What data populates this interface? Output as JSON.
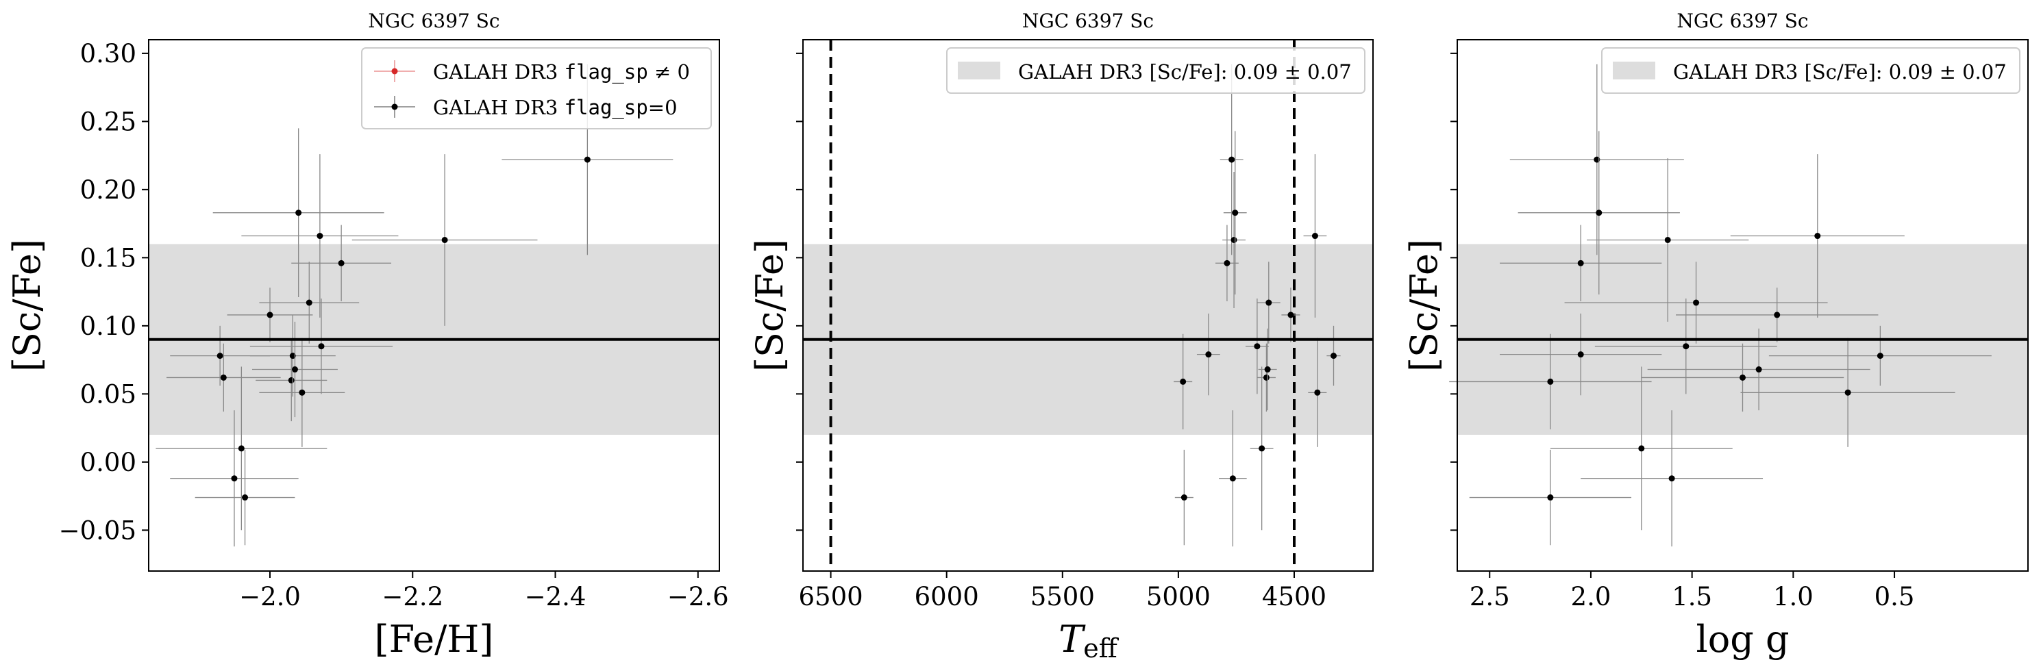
{
  "chart_data": [
    {
      "type": "scatter",
      "title": "NGC 6397 Sc",
      "xlabel": "[Fe/H]",
      "ylabel": "[Sc/Fe]",
      "xlim": [
        -1.83,
        -2.63
      ],
      "ylim": [
        -0.08,
        0.31
      ],
      "xticks": [
        -2.0,
        -2.2,
        -2.4,
        -2.6
      ],
      "xtick_labels": [
        "−2.0",
        "−2.2",
        "−2.4",
        "−2.6"
      ],
      "yticks": [
        -0.05,
        0.0,
        0.05,
        0.1,
        0.15,
        0.2,
        0.25,
        0.3
      ],
      "ytick_labels": [
        "−0.05",
        "0.00",
        "0.05",
        "0.10",
        "0.15",
        "0.20",
        "0.25",
        "0.30"
      ],
      "show_ytick_labels": true,
      "legend": {
        "placement": "top-right",
        "entries": [
          {
            "label_prefix": "GALAH DR3 ",
            "label_code": "flag_sp",
            "label_suffix": " ≠ 0",
            "color": "#d62728"
          },
          {
            "label_prefix": "GALAH DR3 ",
            "label_code": "flag_sp",
            "label_suffix": "=0",
            "color": "#000000"
          }
        ]
      },
      "band": {
        "center": 0.09,
        "half_width": 0.07
      },
      "series": [
        {
          "name": "GALAH DR3 flag_sp=0",
          "points": [
            {
              "x": -1.93,
              "y": 0.078,
              "xerr": 0.07,
              "yerr": 0.022
            },
            {
              "x": -1.935,
              "y": 0.062,
              "xerr": 0.08,
              "yerr": 0.025
            },
            {
              "x": -1.95,
              "y": -0.012,
              "xerr": 0.09,
              "yerr": 0.05
            },
            {
              "x": -1.96,
              "y": 0.01,
              "xerr": 0.12,
              "yerr": 0.06
            },
            {
              "x": -1.965,
              "y": -0.026,
              "xerr": 0.07,
              "yerr": 0.035
            },
            {
              "x": -2.0,
              "y": 0.108,
              "xerr": 0.06,
              "yerr": 0.02
            },
            {
              "x": -2.03,
              "y": 0.06,
              "xerr": 0.05,
              "yerr": 0.03
            },
            {
              "x": -2.032,
              "y": 0.078,
              "xerr": 0.06,
              "yerr": 0.03
            },
            {
              "x": -2.035,
              "y": 0.068,
              "xerr": 0.06,
              "yerr": 0.035
            },
            {
              "x": -2.04,
              "y": 0.183,
              "xerr": 0.12,
              "yerr": 0.062
            },
            {
              "x": -2.045,
              "y": 0.051,
              "xerr": 0.06,
              "yerr": 0.04
            },
            {
              "x": -2.055,
              "y": 0.117,
              "xerr": 0.07,
              "yerr": 0.03
            },
            {
              "x": -2.07,
              "y": 0.166,
              "xerr": 0.11,
              "yerr": 0.06
            },
            {
              "x": -2.072,
              "y": 0.085,
              "xerr": 0.1,
              "yerr": 0.035
            },
            {
              "x": -2.1,
              "y": 0.146,
              "xerr": 0.07,
              "yerr": 0.028
            },
            {
              "x": -2.245,
              "y": 0.163,
              "xerr": 0.13,
              "yerr": 0.063
            },
            {
              "x": -2.445,
              "y": 0.222,
              "xerr": 0.12,
              "yerr": 0.07
            }
          ]
        }
      ]
    },
    {
      "type": "scatter",
      "title": "NGC 6397 Sc",
      "xlabel": "T",
      "xlabel_sub": "eff",
      "ylabel": "[Sc/Fe]",
      "xlim": [
        6620,
        4160
      ],
      "ylim": [
        -0.08,
        0.31
      ],
      "xticks": [
        6500,
        6000,
        5500,
        5000,
        4500
      ],
      "xtick_labels": [
        "6500",
        "6000",
        "5500",
        "5000",
        "4500"
      ],
      "yticks": [
        -0.05,
        0.0,
        0.05,
        0.1,
        0.15,
        0.2,
        0.25,
        0.3
      ],
      "show_ytick_labels": false,
      "vlines": [
        6500,
        4500
      ],
      "legend": {
        "placement": "top-right",
        "entries": [
          {
            "label_prefix": "GALAH DR3 [Sc/Fe]: ",
            "label_code": "",
            "label_suffix": "0.09 ± 0.07",
            "color": "#dddddd",
            "kind": "patch"
          }
        ]
      },
      "band": {
        "center": 0.09,
        "half_width": 0.07
      },
      "series": [
        {
          "name": "GALAH DR3 flag_sp=0",
          "points": [
            {
              "x": 4980,
              "y": 0.059,
              "xerr": 40,
              "yerr": 0.035
            },
            {
              "x": 4975,
              "y": -0.026,
              "xerr": 40,
              "yerr": 0.035
            },
            {
              "x": 4870,
              "y": 0.079,
              "xerr": 50,
              "yerr": 0.03
            },
            {
              "x": 4790,
              "y": 0.146,
              "xerr": 50,
              "yerr": 0.028
            },
            {
              "x": 4770,
              "y": 0.222,
              "xerr": 50,
              "yerr": 0.07
            },
            {
              "x": 4760,
              "y": 0.163,
              "xerr": 50,
              "yerr": 0.05
            },
            {
              "x": 4755,
              "y": 0.183,
              "xerr": 50,
              "yerr": 0.06
            },
            {
              "x": 4765,
              "y": -0.012,
              "xerr": 60,
              "yerr": 0.05
            },
            {
              "x": 4660,
              "y": 0.085,
              "xerr": 50,
              "yerr": 0.035
            },
            {
              "x": 4640,
              "y": 0.01,
              "xerr": 50,
              "yerr": 0.06
            },
            {
              "x": 4620,
              "y": 0.062,
              "xerr": 40,
              "yerr": 0.025
            },
            {
              "x": 4615,
              "y": 0.068,
              "xerr": 40,
              "yerr": 0.03
            },
            {
              "x": 4610,
              "y": 0.117,
              "xerr": 50,
              "yerr": 0.03
            },
            {
              "x": 4515,
              "y": 0.108,
              "xerr": 40,
              "yerr": 0.02
            },
            {
              "x": 4410,
              "y": 0.166,
              "xerr": 50,
              "yerr": 0.06
            },
            {
              "x": 4400,
              "y": 0.051,
              "xerr": 40,
              "yerr": 0.04
            },
            {
              "x": 4330,
              "y": 0.078,
              "xerr": 30,
              "yerr": 0.022
            }
          ]
        }
      ]
    },
    {
      "type": "scatter",
      "title": "NGC 6397 Sc",
      "xlabel": "log g",
      "ylabel": "[Sc/Fe]",
      "xlim": [
        2.66,
        -0.16
      ],
      "ylim": [
        -0.08,
        0.31
      ],
      "xticks": [
        2.5,
        2.0,
        1.5,
        1.0,
        0.5
      ],
      "xtick_labels": [
        "2.5",
        "2.0",
        "1.5",
        "1.0",
        "0.5"
      ],
      "yticks": [
        -0.05,
        0.0,
        0.05,
        0.1,
        0.15,
        0.2,
        0.25,
        0.3
      ],
      "show_ytick_labels": false,
      "legend": {
        "placement": "top-right",
        "entries": [
          {
            "label_prefix": "GALAH DR3 [Sc/Fe]: ",
            "label_code": "",
            "label_suffix": "0.09 ± 0.07",
            "color": "#dddddd",
            "kind": "patch"
          }
        ]
      },
      "band": {
        "center": 0.09,
        "half_width": 0.07
      },
      "series": [
        {
          "name": "GALAH DR3 flag_sp=0",
          "points": [
            {
              "x": 2.2,
              "y": 0.059,
              "xerr": 0.5,
              "yerr": 0.035
            },
            {
              "x": 2.2,
              "y": -0.026,
              "xerr": 0.4,
              "yerr": 0.035
            },
            {
              "x": 2.05,
              "y": 0.146,
              "xerr": 0.4,
              "yerr": 0.028
            },
            {
              "x": 2.05,
              "y": 0.079,
              "xerr": 0.4,
              "yerr": 0.03
            },
            {
              "x": 1.97,
              "y": 0.222,
              "xerr": 0.43,
              "yerr": 0.07
            },
            {
              "x": 1.96,
              "y": 0.183,
              "xerr": 0.4,
              "yerr": 0.06
            },
            {
              "x": 1.75,
              "y": 0.01,
              "xerr": 0.45,
              "yerr": 0.06
            },
            {
              "x": 1.62,
              "y": 0.163,
              "xerr": 0.4,
              "yerr": 0.06
            },
            {
              "x": 1.6,
              "y": -0.012,
              "xerr": 0.45,
              "yerr": 0.05
            },
            {
              "x": 1.53,
              "y": 0.085,
              "xerr": 0.45,
              "yerr": 0.035
            },
            {
              "x": 1.48,
              "y": 0.117,
              "xerr": 0.65,
              "yerr": 0.03
            },
            {
              "x": 1.25,
              "y": 0.062,
              "xerr": 0.5,
              "yerr": 0.025
            },
            {
              "x": 1.17,
              "y": 0.068,
              "xerr": 0.55,
              "yerr": 0.03
            },
            {
              "x": 1.08,
              "y": 0.108,
              "xerr": 0.5,
              "yerr": 0.02
            },
            {
              "x": 0.88,
              "y": 0.166,
              "xerr": 0.43,
              "yerr": 0.06
            },
            {
              "x": 0.73,
              "y": 0.051,
              "xerr": 0.53,
              "yerr": 0.04
            },
            {
              "x": 0.57,
              "y": 0.078,
              "xerr": 0.55,
              "yerr": 0.022
            }
          ]
        }
      ]
    }
  ]
}
